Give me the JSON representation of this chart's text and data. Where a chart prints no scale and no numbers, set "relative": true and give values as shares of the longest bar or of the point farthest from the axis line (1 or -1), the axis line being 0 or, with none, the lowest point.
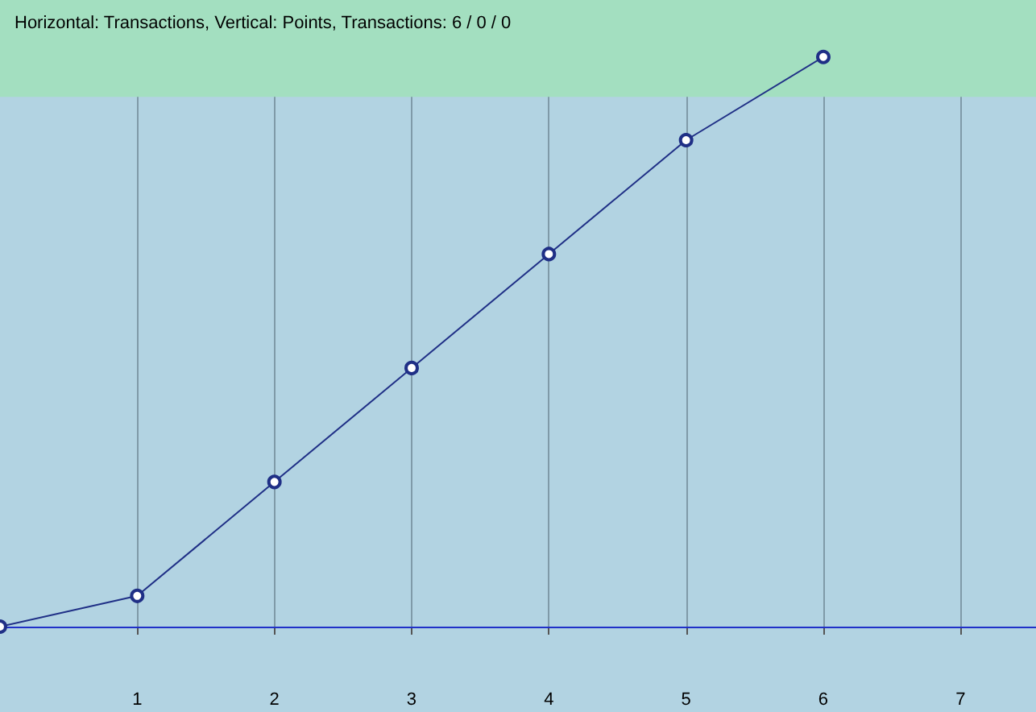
{
  "chart_data": {
    "type": "line",
    "title": "Horizontal: Transactions, Vertical: Points, Transactions: 6 / 0 / 0",
    "xlabel": null,
    "x": [
      0,
      1,
      2,
      3,
      4,
      5,
      6
    ],
    "series": [
      {
        "color": "#1f2f86",
        "values": [
          0,
          0.054,
          0.254,
          0.454,
          0.654,
          0.854,
          1
        ]
      }
    ],
    "relative": true,
    "xlim": [
      0,
      7.55
    ],
    "xticks": [
      1,
      2,
      3,
      4,
      5,
      6,
      7
    ],
    "bands": [
      {
        "axis": "y",
        "from": 0.93,
        "to": 1.1,
        "color": "#a3dfc0"
      }
    ],
    "ref_lines": [
      {
        "axis": "y",
        "value": 0,
        "color": "#2030c8"
      }
    ],
    "grid": true,
    "marker": "circle",
    "line_style": "solid"
  }
}
